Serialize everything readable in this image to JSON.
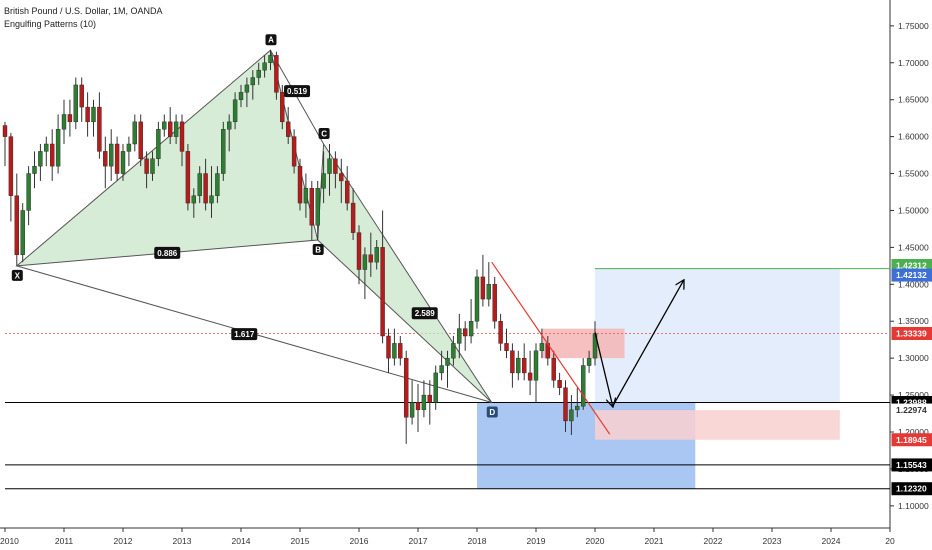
{
  "header": {
    "title": "British Pound / U.S. Dollar, 1M, OANDA",
    "indicator": "Engulfing Patterns (10)"
  },
  "chart_data": {
    "type": "candlestick",
    "symbol": "GBPUSD",
    "timeframe": "1M",
    "broker": "OANDA",
    "ylim": [
      1.07,
      1.785
    ],
    "xlim": [
      2010.0,
      2025.0
    ],
    "x_ticks": [
      "2010",
      "2011",
      "2012",
      "2013",
      "2014",
      "2015",
      "2016",
      "2017",
      "2018",
      "2019",
      "2020",
      "2021",
      "2022",
      "2023",
      "2024",
      "20"
    ],
    "y_ticks": [
      "1.75000",
      "1.70000",
      "1.65000",
      "1.60000",
      "1.55000",
      "1.50000",
      "1.45000",
      "1.40000",
      "1.35000",
      "1.30000",
      "1.25000",
      "1.20000",
      "1.15000",
      "1.10000"
    ],
    "colors": {
      "up": "#2e7d32",
      "down": "#b71c1c",
      "doji": "#333333",
      "harmonic_fill": "#c8e6c9",
      "harmonic_line": "#555555"
    },
    "candles": [
      {
        "t": 2010.0,
        "o": 1.615,
        "h": 1.62,
        "l": 1.56,
        "c": 1.6
      },
      {
        "t": 2010.1,
        "o": 1.6,
        "h": 1.605,
        "l": 1.485,
        "c": 1.52
      },
      {
        "t": 2010.2,
        "o": 1.52,
        "h": 1.55,
        "l": 1.425,
        "c": 1.44
      },
      {
        "t": 2010.3,
        "o": 1.44,
        "h": 1.51,
        "l": 1.43,
        "c": 1.5
      },
      {
        "t": 2010.4,
        "o": 1.5,
        "h": 1.56,
        "l": 1.48,
        "c": 1.55
      },
      {
        "t": 2010.5,
        "o": 1.55,
        "h": 1.58,
        "l": 1.53,
        "c": 1.56
      },
      {
        "t": 2010.6,
        "o": 1.56,
        "h": 1.59,
        "l": 1.54,
        "c": 1.58
      },
      {
        "t": 2010.7,
        "o": 1.58,
        "h": 1.6,
        "l": 1.56,
        "c": 1.59
      },
      {
        "t": 2010.8,
        "o": 1.59,
        "h": 1.61,
        "l": 1.54,
        "c": 1.56
      },
      {
        "t": 2010.9,
        "o": 1.56,
        "h": 1.63,
        "l": 1.55,
        "c": 1.61
      },
      {
        "t": 2011.0,
        "o": 1.61,
        "h": 1.65,
        "l": 1.59,
        "c": 1.63
      },
      {
        "t": 2011.1,
        "o": 1.63,
        "h": 1.65,
        "l": 1.6,
        "c": 1.62
      },
      {
        "t": 2011.2,
        "o": 1.62,
        "h": 1.68,
        "l": 1.61,
        "c": 1.67
      },
      {
        "t": 2011.3,
        "o": 1.67,
        "h": 1.68,
        "l": 1.62,
        "c": 1.64
      },
      {
        "t": 2011.4,
        "o": 1.64,
        "h": 1.66,
        "l": 1.6,
        "c": 1.62
      },
      {
        "t": 2011.5,
        "o": 1.62,
        "h": 1.65,
        "l": 1.6,
        "c": 1.64
      },
      {
        "t": 2011.6,
        "o": 1.64,
        "h": 1.66,
        "l": 1.57,
        "c": 1.58
      },
      {
        "t": 2011.7,
        "o": 1.58,
        "h": 1.6,
        "l": 1.53,
        "c": 1.56
      },
      {
        "t": 2011.8,
        "o": 1.56,
        "h": 1.61,
        "l": 1.54,
        "c": 1.59
      },
      {
        "t": 2011.9,
        "o": 1.59,
        "h": 1.6,
        "l": 1.54,
        "c": 1.55
      },
      {
        "t": 2012.0,
        "o": 1.55,
        "h": 1.59,
        "l": 1.54,
        "c": 1.58
      },
      {
        "t": 2012.1,
        "o": 1.58,
        "h": 1.6,
        "l": 1.56,
        "c": 1.59
      },
      {
        "t": 2012.2,
        "o": 1.59,
        "h": 1.63,
        "l": 1.58,
        "c": 1.62
      },
      {
        "t": 2012.3,
        "o": 1.62,
        "h": 1.63,
        "l": 1.56,
        "c": 1.57
      },
      {
        "t": 2012.4,
        "o": 1.57,
        "h": 1.58,
        "l": 1.53,
        "c": 1.55
      },
      {
        "t": 2012.5,
        "o": 1.55,
        "h": 1.58,
        "l": 1.54,
        "c": 1.57
      },
      {
        "t": 2012.6,
        "o": 1.57,
        "h": 1.62,
        "l": 1.56,
        "c": 1.61
      },
      {
        "t": 2012.7,
        "o": 1.61,
        "h": 1.63,
        "l": 1.6,
        "c": 1.62
      },
      {
        "t": 2012.8,
        "o": 1.62,
        "h": 1.64,
        "l": 1.59,
        "c": 1.6
      },
      {
        "t": 2012.9,
        "o": 1.6,
        "h": 1.63,
        "l": 1.59,
        "c": 1.62
      },
      {
        "t": 2013.0,
        "o": 1.62,
        "h": 1.63,
        "l": 1.56,
        "c": 1.58
      },
      {
        "t": 2013.1,
        "o": 1.58,
        "h": 1.59,
        "l": 1.5,
        "c": 1.51
      },
      {
        "t": 2013.2,
        "o": 1.51,
        "h": 1.53,
        "l": 1.49,
        "c": 1.52
      },
      {
        "t": 2013.3,
        "o": 1.52,
        "h": 1.56,
        "l": 1.51,
        "c": 1.55
      },
      {
        "t": 2013.4,
        "o": 1.55,
        "h": 1.57,
        "l": 1.5,
        "c": 1.51
      },
      {
        "t": 2013.5,
        "o": 1.51,
        "h": 1.56,
        "l": 1.49,
        "c": 1.52
      },
      {
        "t": 2013.6,
        "o": 1.52,
        "h": 1.56,
        "l": 1.51,
        "c": 1.55
      },
      {
        "t": 2013.7,
        "o": 1.55,
        "h": 1.62,
        "l": 1.54,
        "c": 1.61
      },
      {
        "t": 2013.8,
        "o": 1.61,
        "h": 1.63,
        "l": 1.58,
        "c": 1.62
      },
      {
        "t": 2013.9,
        "o": 1.62,
        "h": 1.66,
        "l": 1.61,
        "c": 1.65
      },
      {
        "t": 2014.0,
        "o": 1.65,
        "h": 1.67,
        "l": 1.64,
        "c": 1.66
      },
      {
        "t": 2014.1,
        "o": 1.66,
        "h": 1.68,
        "l": 1.64,
        "c": 1.67
      },
      {
        "t": 2014.2,
        "o": 1.67,
        "h": 1.69,
        "l": 1.65,
        "c": 1.68
      },
      {
        "t": 2014.3,
        "o": 1.68,
        "h": 1.7,
        "l": 1.67,
        "c": 1.69
      },
      {
        "t": 2014.4,
        "o": 1.69,
        "h": 1.71,
        "l": 1.68,
        "c": 1.7
      },
      {
        "t": 2014.5,
        "o": 1.7,
        "h": 1.717,
        "l": 1.69,
        "c": 1.71
      },
      {
        "t": 2014.6,
        "o": 1.71,
        "h": 1.715,
        "l": 1.65,
        "c": 1.66
      },
      {
        "t": 2014.7,
        "o": 1.66,
        "h": 1.67,
        "l": 1.61,
        "c": 1.62
      },
      {
        "t": 2014.8,
        "o": 1.62,
        "h": 1.64,
        "l": 1.59,
        "c": 1.6
      },
      {
        "t": 2014.9,
        "o": 1.6,
        "h": 1.61,
        "l": 1.55,
        "c": 1.56
      },
      {
        "t": 2015.0,
        "o": 1.56,
        "h": 1.57,
        "l": 1.5,
        "c": 1.51
      },
      {
        "t": 2015.1,
        "o": 1.51,
        "h": 1.55,
        "l": 1.49,
        "c": 1.53
      },
      {
        "t": 2015.2,
        "o": 1.53,
        "h": 1.54,
        "l": 1.46,
        "c": 1.48
      },
      {
        "t": 2015.3,
        "o": 1.48,
        "h": 1.54,
        "l": 1.46,
        "c": 1.53
      },
      {
        "t": 2015.4,
        "o": 1.53,
        "h": 1.58,
        "l": 1.51,
        "c": 1.55
      },
      {
        "t": 2015.5,
        "o": 1.55,
        "h": 1.59,
        "l": 1.52,
        "c": 1.57
      },
      {
        "t": 2015.6,
        "o": 1.57,
        "h": 1.58,
        "l": 1.53,
        "c": 1.55
      },
      {
        "t": 2015.7,
        "o": 1.55,
        "h": 1.57,
        "l": 1.51,
        "c": 1.54
      },
      {
        "t": 2015.8,
        "o": 1.54,
        "h": 1.56,
        "l": 1.5,
        "c": 1.51
      },
      {
        "t": 2015.9,
        "o": 1.51,
        "h": 1.53,
        "l": 1.46,
        "c": 1.47
      },
      {
        "t": 2016.0,
        "o": 1.47,
        "h": 1.48,
        "l": 1.4,
        "c": 1.42
      },
      {
        "t": 2016.1,
        "o": 1.42,
        "h": 1.45,
        "l": 1.38,
        "c": 1.44
      },
      {
        "t": 2016.2,
        "o": 1.44,
        "h": 1.47,
        "l": 1.41,
        "c": 1.43
      },
      {
        "t": 2016.3,
        "o": 1.43,
        "h": 1.46,
        "l": 1.42,
        "c": 1.45
      },
      {
        "t": 2016.4,
        "o": 1.45,
        "h": 1.5,
        "l": 1.32,
        "c": 1.33
      },
      {
        "t": 2016.5,
        "o": 1.33,
        "h": 1.34,
        "l": 1.28,
        "c": 1.3
      },
      {
        "t": 2016.6,
        "o": 1.3,
        "h": 1.34,
        "l": 1.29,
        "c": 1.32
      },
      {
        "t": 2016.7,
        "o": 1.32,
        "h": 1.33,
        "l": 1.29,
        "c": 1.3
      },
      {
        "t": 2016.8,
        "o": 1.3,
        "h": 1.31,
        "l": 1.184,
        "c": 1.22
      },
      {
        "t": 2016.9,
        "o": 1.22,
        "h": 1.27,
        "l": 1.21,
        "c": 1.24
      },
      {
        "t": 2017.0,
        "o": 1.24,
        "h": 1.265,
        "l": 1.2,
        "c": 1.23
      },
      {
        "t": 2017.1,
        "o": 1.23,
        "h": 1.27,
        "l": 1.22,
        "c": 1.25
      },
      {
        "t": 2017.2,
        "o": 1.25,
        "h": 1.27,
        "l": 1.21,
        "c": 1.24
      },
      {
        "t": 2017.3,
        "o": 1.24,
        "h": 1.29,
        "l": 1.23,
        "c": 1.28
      },
      {
        "t": 2017.4,
        "o": 1.28,
        "h": 1.31,
        "l": 1.27,
        "c": 1.29
      },
      {
        "t": 2017.5,
        "o": 1.29,
        "h": 1.31,
        "l": 1.26,
        "c": 1.3
      },
      {
        "t": 2017.6,
        "o": 1.3,
        "h": 1.33,
        "l": 1.29,
        "c": 1.32
      },
      {
        "t": 2017.7,
        "o": 1.32,
        "h": 1.36,
        "l": 1.3,
        "c": 1.34
      },
      {
        "t": 2017.8,
        "o": 1.34,
        "h": 1.35,
        "l": 1.31,
        "c": 1.33
      },
      {
        "t": 2017.9,
        "o": 1.33,
        "h": 1.38,
        "l": 1.32,
        "c": 1.35
      },
      {
        "t": 2018.0,
        "o": 1.35,
        "h": 1.42,
        "l": 1.34,
        "c": 1.41
      },
      {
        "t": 2018.1,
        "o": 1.41,
        "h": 1.44,
        "l": 1.37,
        "c": 1.38
      },
      {
        "t": 2018.2,
        "o": 1.38,
        "h": 1.43,
        "l": 1.37,
        "c": 1.4
      },
      {
        "t": 2018.3,
        "o": 1.4,
        "h": 1.41,
        "l": 1.34,
        "c": 1.35
      },
      {
        "t": 2018.4,
        "o": 1.35,
        "h": 1.36,
        "l": 1.31,
        "c": 1.32
      },
      {
        "t": 2018.5,
        "o": 1.32,
        "h": 1.34,
        "l": 1.3,
        "c": 1.31
      },
      {
        "t": 2018.6,
        "o": 1.31,
        "h": 1.32,
        "l": 1.26,
        "c": 1.28
      },
      {
        "t": 2018.7,
        "o": 1.28,
        "h": 1.31,
        "l": 1.27,
        "c": 1.3
      },
      {
        "t": 2018.8,
        "o": 1.3,
        "h": 1.32,
        "l": 1.27,
        "c": 1.28
      },
      {
        "t": 2018.9,
        "o": 1.28,
        "h": 1.31,
        "l": 1.25,
        "c": 1.27
      },
      {
        "t": 2019.0,
        "o": 1.27,
        "h": 1.32,
        "l": 1.24,
        "c": 1.31
      },
      {
        "t": 2019.1,
        "o": 1.31,
        "h": 1.34,
        "l": 1.3,
        "c": 1.32
      },
      {
        "t": 2019.2,
        "o": 1.32,
        "h": 1.33,
        "l": 1.29,
        "c": 1.3
      },
      {
        "t": 2019.3,
        "o": 1.3,
        "h": 1.31,
        "l": 1.26,
        "c": 1.27
      },
      {
        "t": 2019.4,
        "o": 1.27,
        "h": 1.28,
        "l": 1.25,
        "c": 1.26
      },
      {
        "t": 2019.5,
        "o": 1.26,
        "h": 1.27,
        "l": 1.2,
        "c": 1.215
      },
      {
        "t": 2019.6,
        "o": 1.215,
        "h": 1.25,
        "l": 1.196,
        "c": 1.23
      },
      {
        "t": 2019.7,
        "o": 1.23,
        "h": 1.26,
        "l": 1.22,
        "c": 1.235
      },
      {
        "t": 2019.8,
        "o": 1.235,
        "h": 1.3,
        "l": 1.23,
        "c": 1.29
      },
      {
        "t": 2019.9,
        "o": 1.29,
        "h": 1.31,
        "l": 1.28,
        "c": 1.3
      },
      {
        "t": 2020.0,
        "o": 1.3,
        "h": 1.35,
        "l": 1.29,
        "c": 1.333
      }
    ],
    "harmonic_pattern": {
      "points": [
        {
          "label": "X",
          "t": 2010.2,
          "p": 1.425
        },
        {
          "label": "A",
          "t": 2014.5,
          "p": 1.717
        },
        {
          "label": "B",
          "t": 2015.3,
          "p": 1.46
        },
        {
          "label": "C",
          "t": 2015.4,
          "p": 1.59
        },
        {
          "label": "D",
          "t": 2018.25,
          "p": 1.24
        }
      ],
      "ratios": [
        {
          "label": "0.519",
          "between": [
            "A",
            "C"
          ]
        },
        {
          "label": "0.886",
          "between": [
            "X",
            "B"
          ]
        },
        {
          "label": "1.617",
          "between": [
            "X",
            "D"
          ]
        },
        {
          "label": "2.589",
          "between": [
            "B",
            "D"
          ]
        }
      ]
    },
    "zones": [
      {
        "name": "potential-reversal-zone",
        "t0": 2018.0,
        "t1": 2021.7,
        "p0": 1.1232,
        "p1": 1.2399,
        "color": "#9bbcf0"
      },
      {
        "name": "target-zone",
        "t0": 2020.0,
        "t1": 2024.15,
        "p0": 1.2399,
        "p1": 1.4213,
        "color": "#dfeafa"
      },
      {
        "name": "stop-zone",
        "t0": 2020.0,
        "t1": 2024.15,
        "p0": 1.1895,
        "p1": 1.2297,
        "color": "#f9d0d0"
      },
      {
        "name": "resistance-box",
        "t0": 2019.1,
        "t1": 2020.5,
        "p0": 1.3,
        "p1": 1.34,
        "color": "#f4b5b5"
      }
    ],
    "lines": [
      {
        "name": "take-profit-line",
        "p": 1.4213,
        "t0": 2020.0,
        "color": "#4caf50",
        "style": "solid"
      },
      {
        "name": "current-price-line",
        "p": 1.3334,
        "t0": 2010.0,
        "color": "#e57373",
        "style": "dotted"
      },
      {
        "name": "support-line-1",
        "p": 1.2399,
        "t0": 2010.0,
        "color": "#000000",
        "style": "solid"
      },
      {
        "name": "support-line-2",
        "p": 1.1554,
        "t0": 2010.0,
        "color": "#000000",
        "style": "solid"
      },
      {
        "name": "support-line-3",
        "p": 1.1232,
        "t0": 2010.0,
        "color": "#000000",
        "style": "solid"
      }
    ],
    "trend_line": {
      "t0": 2018.25,
      "p0": 1.43,
      "t1": 2020.25,
      "p1": 1.197,
      "color": "#e53935"
    },
    "projection_path": [
      {
        "t": 2020.0,
        "p": 1.335
      },
      {
        "t": 2020.3,
        "p": 1.235
      },
      {
        "t": 2021.5,
        "p": 1.405
      }
    ],
    "price_labels": [
      {
        "text": "1.42312",
        "p": 1.4255,
        "bg": "#4caf50",
        "fg": "#ffffff"
      },
      {
        "text": "1.42132",
        "p": 1.4125,
        "bg": "#3d6fd6",
        "fg": "#ffffff"
      },
      {
        "text": "1.33339",
        "p": 1.3334,
        "bg": "#e53935",
        "fg": "#ffffff"
      },
      {
        "text": "1.23988",
        "p": 1.2399,
        "bg": "#000000",
        "fg": "#ffffff"
      },
      {
        "text": "1.22974",
        "p": 1.2297,
        "bg": "#ffffff",
        "fg": "#333333"
      },
      {
        "text": "1.18945",
        "p": 1.1895,
        "bg": "#e53935",
        "fg": "#ffffff"
      },
      {
        "text": "1.15543",
        "p": 1.1554,
        "bg": "#000000",
        "fg": "#ffffff"
      },
      {
        "text": "1.12320",
        "p": 1.1232,
        "bg": "#000000",
        "fg": "#ffffff"
      }
    ]
  }
}
